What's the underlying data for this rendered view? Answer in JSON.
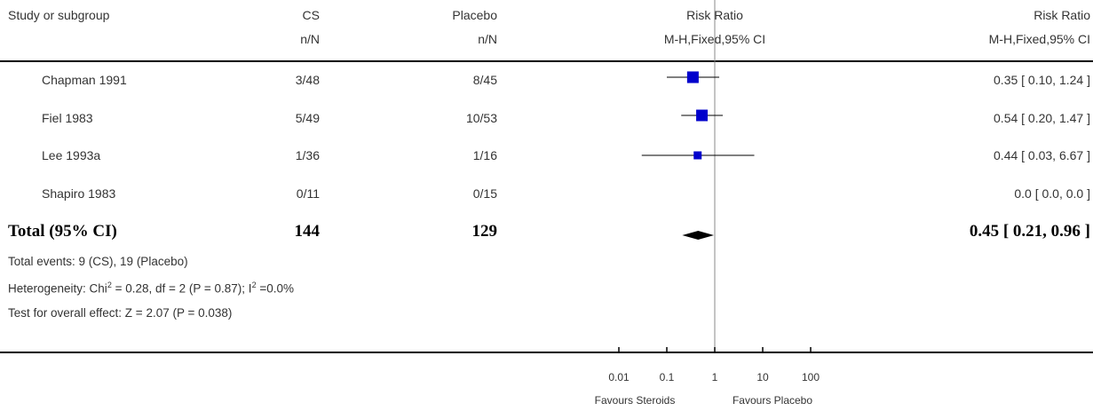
{
  "header": {
    "study": "Study or subgroup",
    "group1": "CS",
    "group1_sub": "n/N",
    "group2": "Placebo",
    "group2_sub": "n/N",
    "plot_title": "Risk Ratio",
    "plot_sub": "M-H,Fixed,95% CI",
    "effect_title": "Risk Ratio",
    "effect_sub": "M-H,Fixed,95% CI"
  },
  "rows": [
    {
      "study": "Chapman 1991",
      "g1": "3/48",
      "g2": "8/45",
      "effect": "0.35 [ 0.10, 1.24 ]"
    },
    {
      "study": "Fiel 1983",
      "g1": "5/49",
      "g2": "10/53",
      "effect": "0.54 [ 0.20, 1.47 ]"
    },
    {
      "study": "Lee 1993a",
      "g1": "1/36",
      "g2": "1/16",
      "effect": "0.44 [ 0.03, 6.67 ]"
    },
    {
      "study": "Shapiro 1983",
      "g1": "0/11",
      "g2": "0/15",
      "effect": "0.0 [ 0.0, 0.0 ]"
    }
  ],
  "total": {
    "label": "Total (95% CI)",
    "g1": "144",
    "g2": "129",
    "effect": "0.45 [ 0.21, 0.96 ]"
  },
  "notes": {
    "events": "Total events: 9 (CS), 19 (Placebo)",
    "heterogeneity_pre": "Heterogeneity: Chi",
    "heterogeneity_sup1": "2",
    "heterogeneity_mid": " = 0.28, df = 2 (P = 0.87); I",
    "heterogeneity_sup2": "2",
    "heterogeneity_post": " =0.0%",
    "overall": "Test for overall effect: Z = 2.07 (P = 0.038)"
  },
  "axis": {
    "favours_left": "Favours Steroids",
    "favours_right": "Favours Placebo"
  },
  "chart_data": {
    "type": "forest",
    "scale": "log",
    "xlim": [
      0.01,
      100
    ],
    "ticks": [
      {
        "value": 0.01,
        "label": "0.01"
      },
      {
        "value": 0.1,
        "label": "0.1"
      },
      {
        "value": 1,
        "label": "1"
      },
      {
        "value": 10,
        "label": "10"
      },
      {
        "value": 100,
        "label": "100"
      }
    ],
    "studies": [
      {
        "name": "Chapman 1991",
        "rr": 0.35,
        "lo": 0.1,
        "hi": 1.24,
        "weight": 0.45
      },
      {
        "name": "Fiel 1983",
        "rr": 0.54,
        "lo": 0.2,
        "hi": 1.47,
        "weight": 0.44
      },
      {
        "name": "Lee 1993a",
        "rr": 0.44,
        "lo": 0.03,
        "hi": 6.67,
        "weight": 0.11
      },
      {
        "name": "Shapiro 1983",
        "rr": null,
        "lo": null,
        "hi": null,
        "weight": 0
      }
    ],
    "total": {
      "rr": 0.45,
      "lo": 0.21,
      "hi": 0.96
    },
    "colors": {
      "marker": "#0000cc",
      "line": "#000000",
      "diamond": "#000000",
      "reference": "#888888"
    }
  }
}
